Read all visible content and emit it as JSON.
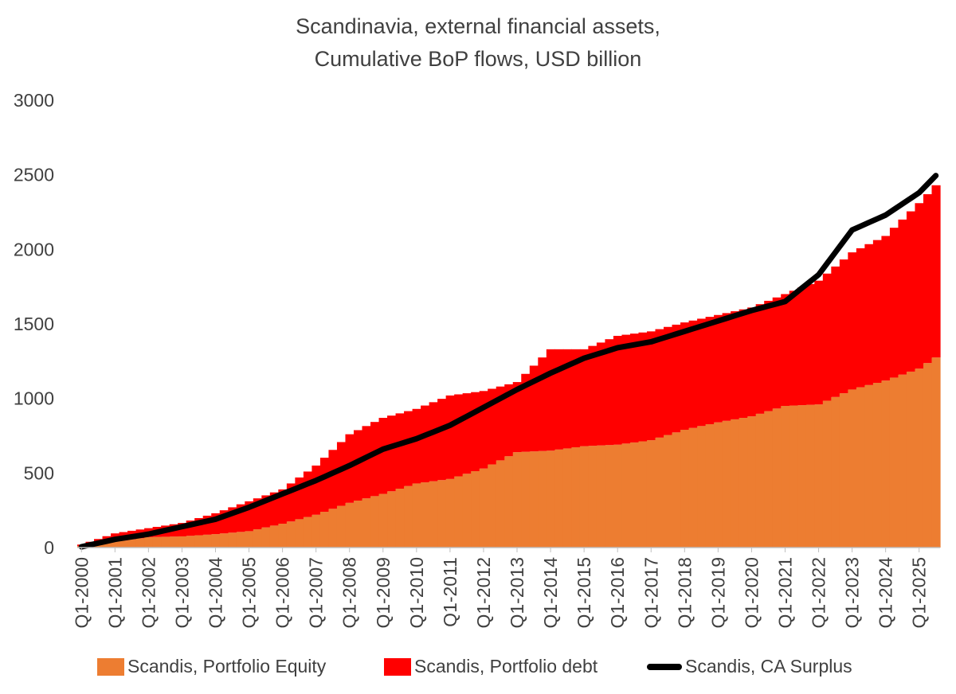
{
  "chart_data": {
    "type": "area",
    "title_lines": [
      "Scandinavia, external financial assets,",
      "Cumulative BoP flows, USD billion"
    ],
    "xlabel": "",
    "ylabel": "",
    "ylim": [
      0,
      3000
    ],
    "y_ticks": [
      "0",
      "500",
      "1000",
      "1500",
      "2000",
      "2500",
      "3000"
    ],
    "x_tick_labels": [
      "Q1-2000",
      "Q1-2001",
      "Q1-2002",
      "Q1-2003",
      "Q1-2004",
      "Q1-2005",
      "Q1-2006",
      "Q1-2007",
      "Q1-2008",
      "Q1-2009",
      "Q1-2010",
      "Q1-2011",
      "Q1-2012",
      "Q1-2013",
      "Q1-2014",
      "Q1-2015",
      "Q1-2016",
      "Q1-2017",
      "Q1-2018",
      "Q1-2019",
      "Q1-2020",
      "Q1-2021",
      "Q1-2022",
      "Q1-2023",
      "Q1-2024",
      "Q1-2025"
    ],
    "grid": false,
    "legend_position": "bottom",
    "colors": {
      "equity": "#ED7D31",
      "debt": "#FF0000",
      "ca": "#000000"
    },
    "anchor_years": [
      2000,
      2001,
      2002,
      2003,
      2004,
      2005,
      2006,
      2007,
      2008,
      2009,
      2010,
      2011,
      2012,
      2013,
      2014,
      2015,
      2016,
      2017,
      2018,
      2019,
      2020,
      2021,
      2022,
      2023,
      2024,
      2025,
      2025.5
    ],
    "series": [
      {
        "name": "Scandis, Portfolio Equity",
        "values": [
          10,
          40,
          70,
          75,
          90,
          110,
          160,
          220,
          300,
          360,
          430,
          460,
          530,
          640,
          650,
          680,
          690,
          720,
          790,
          840,
          880,
          950,
          960,
          1060,
          1120,
          1200,
          1275
        ]
      },
      {
        "name": "Scandis, Portfolio debt",
        "values": [
          10,
          55,
          60,
          90,
          140,
          200,
          230,
          330,
          460,
          510,
          500,
          560,
          520,
          470,
          680,
          650,
          730,
          730,
          720,
          720,
          730,
          750,
          830,
          920,
          970,
          1110,
          1155
        ]
      },
      {
        "name": "Scandis, CA Surplus",
        "values": [
          5,
          55,
          90,
          140,
          190,
          270,
          360,
          450,
          550,
          660,
          730,
          820,
          940,
          1060,
          1170,
          1270,
          1340,
          1380,
          1450,
          1520,
          1590,
          1650,
          1830,
          2130,
          2230,
          2380,
          2495
        ]
      }
    ]
  }
}
